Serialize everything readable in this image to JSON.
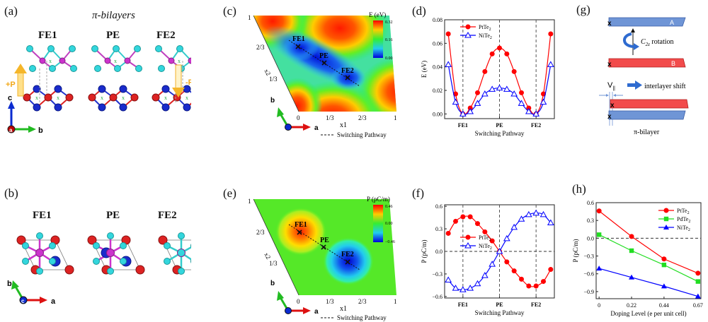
{
  "figure": {
    "panels": {
      "a": {
        "label": "(a)",
        "title": "π-bilayers",
        "structures": [
          "FE1",
          "PE",
          "FE2"
        ],
        "polarization_up": "+P",
        "polarization_down": "-P",
        "axes": {
          "vertical": "c",
          "horizontal": "b",
          "origin": "a"
        }
      },
      "b": {
        "label": "(b)",
        "structures": [
          "FE1",
          "PE",
          "FE2"
        ],
        "axes": {
          "vertical": "b",
          "horizontal": "a",
          "origin": "c"
        }
      },
      "c": {
        "label": "(c)",
        "colorbar_title": "E (eV)",
        "colorbar_ticks": [
          "0.32",
          "0.16",
          "0.00"
        ],
        "x_label": "x1",
        "y_label": "x2",
        "x_ticks": [
          "0",
          "1/3",
          "2/3",
          "1"
        ],
        "y_ticks": [
          "1/3",
          "2/3",
          "1"
        ],
        "points": [
          "FE1",
          "PE",
          "FE2"
        ],
        "legend": "Switching Pathway",
        "axes": {
          "vertical": "b",
          "horizontal": "a"
        }
      },
      "e": {
        "label": "(e)",
        "colorbar_title": "P (pC/m)",
        "colorbar_ticks": [
          "0.46",
          "0.00",
          "−0.46"
        ],
        "x_label": "x1",
        "y_label": "x2",
        "x_ticks": [
          "0",
          "1/3",
          "2/3",
          "1"
        ],
        "y_ticks": [
          "1/3",
          "2/3",
          "1"
        ],
        "points": [
          "FE1",
          "PE",
          "FE2"
        ],
        "legend": "Switching Pathway",
        "axes": {
          "vertical": "b",
          "horizontal": "a"
        }
      },
      "d": {
        "label": "(d)"
      },
      "f": {
        "label": "(f)"
      },
      "g": {
        "label": "(g)",
        "layer_a": "A",
        "layer_b": "B",
        "marker": "x",
        "rotation_label": "C",
        "rotation_sub": "2z",
        "rotation_text": " rotation",
        "shift_symbol": "V",
        "shift_sub": "||",
        "shift_label": "interlayer shift",
        "bilayer_label": "π-bilayer"
      },
      "h": {
        "label": "(h)"
      }
    }
  },
  "chart_data": [
    {
      "id": "d",
      "type": "line",
      "title": "",
      "xlabel": "Switching Pathway",
      "ylabel": "E (eV)",
      "x_ticks": [
        "FE1",
        "PE",
        "FE2"
      ],
      "x_tick_positions": [
        2,
        7,
        12
      ],
      "x": [
        0,
        1,
        2,
        3,
        4,
        5,
        6,
        7,
        8,
        9,
        10,
        11,
        12,
        13,
        14
      ],
      "xlim": [
        -0.5,
        14.5
      ],
      "ylim": [
        -0.004,
        0.08
      ],
      "y_ticks": [
        "0.00",
        "0.02",
        "0.04",
        "0.06",
        "0.08"
      ],
      "y_tick_values": [
        0,
        0.02,
        0.04,
        0.06,
        0.08
      ],
      "vlines": [
        2,
        7,
        12
      ],
      "legend_position": "top-left",
      "series": [
        {
          "name": "PtTe",
          "sub": "2",
          "color": "#ff0000",
          "marker": "circle",
          "values": [
            0.068,
            0.017,
            0.0,
            0.005,
            0.018,
            0.036,
            0.051,
            0.056,
            0.051,
            0.036,
            0.018,
            0.005,
            0.0,
            0.017,
            0.068
          ]
        },
        {
          "name": "NiTe",
          "sub": "2",
          "color": "#0000ff",
          "marker": "triangle-open",
          "values": [
            0.042,
            0.01,
            0.0,
            0.002,
            0.009,
            0.017,
            0.021,
            0.022,
            0.021,
            0.017,
            0.009,
            0.002,
            0.0,
            0.01,
            0.042
          ]
        }
      ]
    },
    {
      "id": "f",
      "type": "line",
      "title": "",
      "xlabel": "Switching Pathway",
      "ylabel": "P (pC/m)",
      "x_ticks": [
        "FE1",
        "PE",
        "FE2"
      ],
      "x_tick_positions": [
        2,
        7,
        12
      ],
      "x": [
        0,
        1,
        2,
        3,
        4,
        5,
        6,
        7,
        8,
        9,
        10,
        11,
        12,
        13,
        14
      ],
      "xlim": [
        -0.5,
        14.5
      ],
      "ylim": [
        -0.62,
        0.62
      ],
      "y_ticks": [
        "-0.6",
        "-0.3",
        "0.0",
        "0.3",
        "0.6"
      ],
      "y_tick_values": [
        -0.6,
        -0.3,
        0,
        0.3,
        0.6
      ],
      "vlines": [
        2,
        7,
        12
      ],
      "hline": 0,
      "legend_position": "center-left",
      "series": [
        {
          "name": "PtTe",
          "sub": "2",
          "color": "#ff0000",
          "marker": "circle",
          "values": [
            0.24,
            0.4,
            0.46,
            0.46,
            0.37,
            0.26,
            0.14,
            0.0,
            -0.14,
            -0.26,
            -0.37,
            -0.46,
            -0.46,
            -0.4,
            -0.24
          ]
        },
        {
          "name": "NiTe",
          "sub": "2",
          "color": "#0000ff",
          "marker": "triangle-open",
          "values": [
            -0.38,
            -0.49,
            -0.51,
            -0.49,
            -0.43,
            -0.32,
            -0.17,
            0.0,
            0.17,
            0.32,
            0.43,
            0.49,
            0.51,
            0.49,
            0.38
          ]
        }
      ]
    },
    {
      "id": "h",
      "type": "line",
      "title": "",
      "xlabel": "Doping Level (e per unit cell)",
      "ylabel": "P (pC/m)",
      "x_ticks": [
        "0",
        "0.22",
        "0.44",
        "0.67"
      ],
      "x": [
        0,
        0.22,
        0.44,
        0.67
      ],
      "xlim": [
        -0.02,
        0.69
      ],
      "ylim": [
        -1.02,
        0.6
      ],
      "y_ticks": [
        "-0.9",
        "-0.6",
        "-0.3",
        "0.0",
        "0.3",
        "0.6"
      ],
      "y_tick_values": [
        -0.9,
        -0.6,
        -0.3,
        0,
        0.3,
        0.6
      ],
      "hline": 0,
      "legend_position": "top-right",
      "series": [
        {
          "name": "PtTe",
          "sub": "2",
          "color": "#ff0000",
          "marker": "circle",
          "values": [
            0.46,
            0.03,
            -0.35,
            -0.59
          ]
        },
        {
          "name": "PdTe",
          "sub": "2",
          "color": "#22dd22",
          "marker": "square",
          "values": [
            0.06,
            -0.21,
            -0.45,
            -0.73
          ]
        },
        {
          "name": "NiTe",
          "sub": "2",
          "color": "#0000ff",
          "marker": "triangle",
          "values": [
            -0.51,
            -0.66,
            -0.81,
            -0.98
          ]
        }
      ]
    }
  ]
}
